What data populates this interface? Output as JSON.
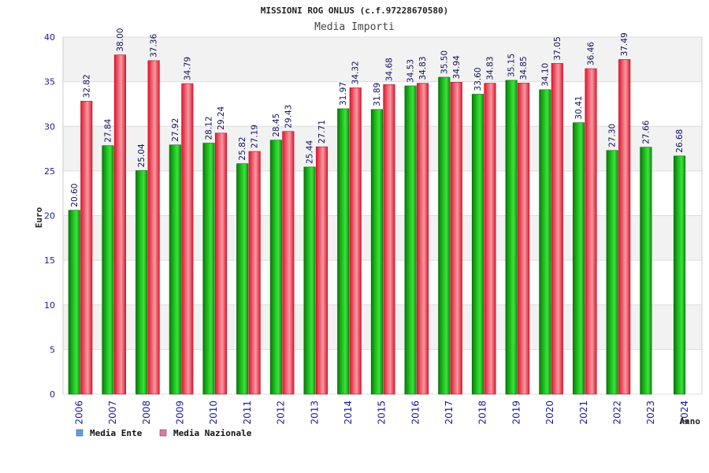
{
  "chart_data": {
    "type": "bar",
    "title": "MISSIONI ROG ONLUS (c.f.97228670580)",
    "subtitle": "Media Importi",
    "xlabel": "Anno",
    "ylabel": "Euro",
    "ylim": [
      0,
      40
    ],
    "yticks": [
      "0",
      "5",
      "10",
      "15",
      "20",
      "25",
      "30",
      "35",
      "40"
    ],
    "grid": true,
    "legend_position": "bottom-left",
    "categories": [
      "2006",
      "2007",
      "2008",
      "2009",
      "2010",
      "2011",
      "2012",
      "2013",
      "2014",
      "2015",
      "2016",
      "2017",
      "2018",
      "2019",
      "2020",
      "2021",
      "2022",
      "2023",
      "2024"
    ],
    "series": [
      {
        "name": "Media Ente",
        "color": "#19b019",
        "legend_color": "#5aa0e8",
        "values": [
          20.6,
          27.84,
          25.04,
          27.92,
          28.12,
          25.82,
          28.45,
          25.44,
          31.97,
          31.89,
          34.53,
          35.5,
          33.6,
          35.15,
          34.1,
          30.41,
          27.3,
          27.66,
          26.68
        ],
        "labels": [
          "20.60",
          "27.84",
          "25.04",
          "27.92",
          "28.12",
          "25.82",
          "28.45",
          "25.44",
          "31.97",
          "31.89",
          "34.53",
          "35.50",
          "33.60",
          "35.15",
          "34.10",
          "30.41",
          "27.30",
          "27.66",
          "26.68"
        ]
      },
      {
        "name": "Media Nazionale",
        "color": "#e8243a",
        "legend_color": "#e07aa8",
        "values": [
          32.82,
          38.0,
          37.36,
          34.79,
          29.24,
          27.19,
          29.43,
          27.71,
          34.32,
          34.68,
          34.83,
          34.94,
          34.83,
          34.85,
          37.05,
          36.46,
          37.49,
          null,
          null
        ],
        "labels": [
          "32.82",
          "38.00",
          "37.36",
          "34.79",
          "29.24",
          "27.19",
          "29.43",
          "27.71",
          "34.32",
          "34.68",
          "34.83",
          "34.94",
          "34.83",
          "34.85",
          "37.05",
          "36.46",
          "37.49",
          null,
          null
        ]
      }
    ]
  }
}
